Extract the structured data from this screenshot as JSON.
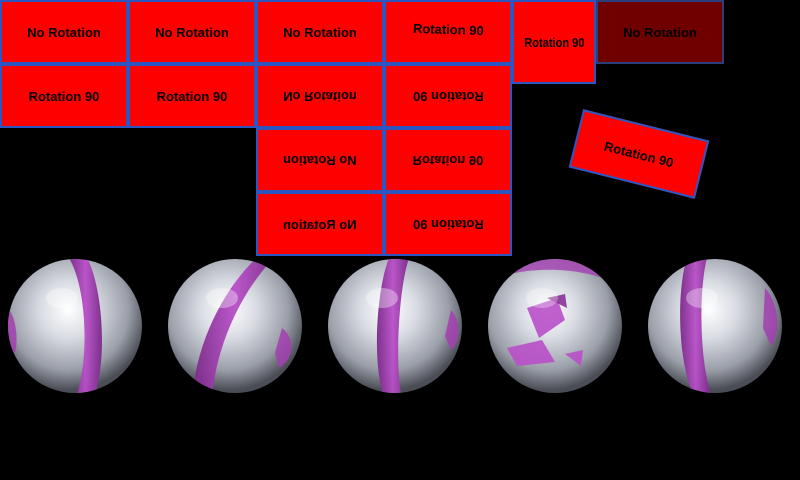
{
  "tiles": {
    "r1c1": "No Rotation",
    "r1c2": "No Rotation",
    "r1c3": "No Rotation",
    "r1c4": "Rotation 90",
    "r1c5": "Rotation 90",
    "r1c6": "No Rotation",
    "r2c1": "Rotation 90",
    "r2c2": "Rotation 90",
    "r2c3": "No Rotation",
    "r2c4": "Rotation 90",
    "r3c3": "No Rotation",
    "r3c4": "Rotation 90",
    "r4c3": "No Rotation",
    "r4c4": "Rotation 90",
    "tilted": "Rotation 90"
  },
  "colors": {
    "tile_fill": "#ff0000",
    "tile_dark_fill": "#700000",
    "tile_border": "#2a57c4",
    "sphere_band": "#a23fb0",
    "background": "#000000"
  },
  "icons": [
    "textured-sphere-icon"
  ]
}
